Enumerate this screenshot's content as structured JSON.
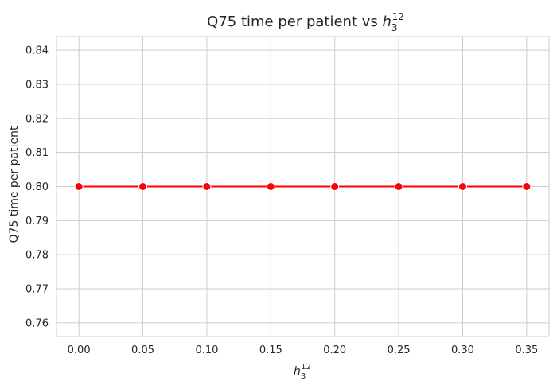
{
  "chart_data": {
    "type": "line",
    "title": {
      "prefix": "Q75 time per patient vs ",
      "var": "h",
      "sub": "3",
      "sup": "12"
    },
    "xlabel": {
      "var": "h",
      "sub": "3",
      "sup": "12"
    },
    "ylabel": "Q75 time per patient",
    "x": [
      0.0,
      0.05,
      0.1,
      0.15,
      0.2,
      0.25,
      0.3,
      0.35
    ],
    "x_tick_labels": [
      "0.00",
      "0.05",
      "0.10",
      "0.15",
      "0.20",
      "0.25",
      "0.30",
      "0.35"
    ],
    "series": [
      {
        "values": [
          0.8,
          0.8,
          0.8,
          0.8,
          0.8,
          0.8,
          0.8,
          0.8
        ],
        "color": "#ff0000",
        "marker": "circle"
      }
    ],
    "xlim": [
      -0.0175,
      0.3675
    ],
    "ylim": [
      0.756,
      0.844
    ],
    "y_ticks": [
      0.76,
      0.77,
      0.78,
      0.79,
      0.8,
      0.81,
      0.82,
      0.83,
      0.84
    ],
    "y_tick_labels": [
      "0.76",
      "0.77",
      "0.78",
      "0.79",
      "0.80",
      "0.81",
      "0.82",
      "0.83",
      "0.84"
    ],
    "grid": true,
    "legend": "none"
  }
}
